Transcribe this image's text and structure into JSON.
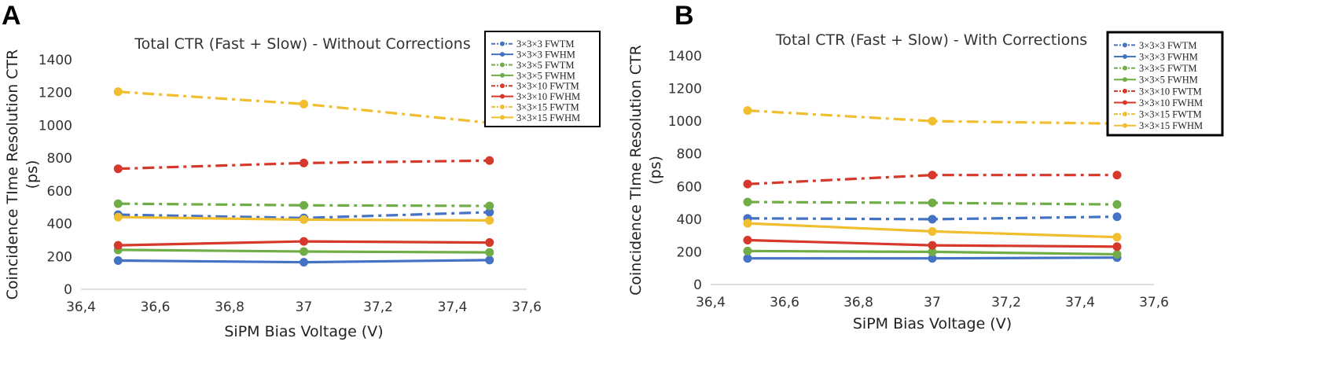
{
  "chart_data": [
    {
      "panel": "A",
      "type": "line",
      "title": "Total CTR (Fast + Slow) - Without Corrections",
      "xlabel": "SiPM Bias Voltage (V)",
      "ylabel_line1": "Coincidence TIme Resolution CTR",
      "ylabel_line2": "(ps)",
      "xlim": [
        36.4,
        37.6
      ],
      "ylim": [
        0,
        1400
      ],
      "xticks": [
        36.4,
        36.6,
        36.8,
        37.0,
        37.2,
        37.4,
        37.6
      ],
      "xtick_labels": [
        "36,4",
        "36,6",
        "36,8",
        "37",
        "37,2",
        "37,4",
        "37,6"
      ],
      "yticks": [
        0,
        200,
        400,
        600,
        800,
        1000,
        1200,
        1400
      ],
      "ytick_labels": [
        "0",
        "200",
        "400",
        "600",
        "800",
        "1000",
        "1200",
        "1400"
      ],
      "x": [
        36.5,
        37.0,
        37.5
      ],
      "series": [
        {
          "name": "3×3×3 FWTM",
          "color": "#4472C4",
          "dash": "dashdot",
          "values": [
            455,
            435,
            470
          ]
        },
        {
          "name": "3×3×3 FWHM",
          "color": "#4472C4",
          "dash": "solid",
          "values": [
            175,
            165,
            178
          ]
        },
        {
          "name": "3×3×5 FWTM",
          "color": "#70AD47",
          "dash": "dashdot",
          "values": [
            522,
            512,
            508
          ]
        },
        {
          "name": "3×3×5 FWHM",
          "color": "#70AD47",
          "dash": "solid",
          "values": [
            240,
            230,
            225
          ]
        },
        {
          "name": "3×3×10 FWTM",
          "color": "#D6382B",
          "dash": "dashdot",
          "values": [
            735,
            770,
            785
          ]
        },
        {
          "name": "3×3×10 FWHM",
          "color": "#D6382B",
          "dash": "solid",
          "values": [
            268,
            292,
            285
          ]
        },
        {
          "name": "3×3×15 FWTM",
          "color": "#F0BE2E",
          "dash": "dashdot",
          "values": [
            1205,
            1130,
            1015
          ]
        },
        {
          "name": "3×3×15 FWHM",
          "color": "#F0BE2E",
          "dash": "solid",
          "values": [
            440,
            425,
            420
          ]
        }
      ]
    },
    {
      "panel": "B",
      "type": "line",
      "title": "Total CTR (Fast + Slow) - With Corrections",
      "xlabel": "SiPM Bias Voltage (V)",
      "ylabel_line1": "Coincidence TIme Resolution CTR",
      "ylabel_line2": "(ps)",
      "xlim": [
        36.4,
        37.6
      ],
      "ylim": [
        0,
        1400
      ],
      "xticks": [
        36.4,
        36.6,
        36.8,
        37.0,
        37.2,
        37.4,
        37.6
      ],
      "xtick_labels": [
        "36,4",
        "36,6",
        "36,8",
        "37",
        "37,2",
        "37,4",
        "37,6"
      ],
      "yticks": [
        0,
        200,
        400,
        600,
        800,
        1000,
        1200,
        1400
      ],
      "ytick_labels": [
        "0",
        "200",
        "400",
        "600",
        "800",
        "1000",
        "1200",
        "1400"
      ],
      "x": [
        36.5,
        37.0,
        37.5
      ],
      "series": [
        {
          "name": "3×3×3 FWTM",
          "color": "#4472C4",
          "dash": "dashdot",
          "values": [
            405,
            400,
            415
          ]
        },
        {
          "name": "3×3×3 FWHM",
          "color": "#4472C4",
          "dash": "solid",
          "values": [
            160,
            160,
            165
          ]
        },
        {
          "name": "3×3×5 FWTM",
          "color": "#70AD47",
          "dash": "dashdot",
          "values": [
            505,
            500,
            490
          ]
        },
        {
          "name": "3×3×5 FWHM",
          "color": "#70AD47",
          "dash": "solid",
          "values": [
            205,
            200,
            185
          ]
        },
        {
          "name": "3×3×10 FWTM",
          "color": "#D6382B",
          "dash": "dashdot",
          "values": [
            615,
            670,
            670
          ]
        },
        {
          "name": "3×3×10 FWHM",
          "color": "#D6382B",
          "dash": "solid",
          "values": [
            272,
            240,
            232
          ]
        },
        {
          "name": "3×3×15 FWTM",
          "color": "#F0BE2E",
          "dash": "dashdot",
          "values": [
            1065,
            1000,
            985
          ]
        },
        {
          "name": "3×3×15 FWHM",
          "color": "#F0BE2E",
          "dash": "solid",
          "values": [
            375,
            325,
            290
          ]
        }
      ]
    }
  ]
}
